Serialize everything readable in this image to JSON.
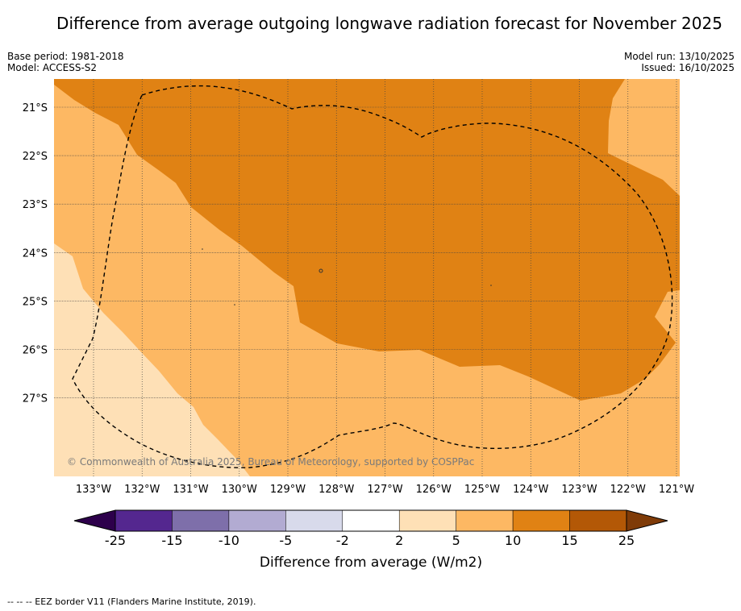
{
  "title": "Difference from average outgoing longwave radiation forecast for November 2025",
  "meta": {
    "base_period": "Base period: 1981-2018",
    "model": "Model: ACCESS-S2",
    "model_run": "Model run: 13/10/2025",
    "issued": "Issued: 16/10/2025"
  },
  "map": {
    "lat_labels": [
      "21°S",
      "22°S",
      "23°S",
      "24°S",
      "25°S",
      "26°S",
      "27°S"
    ],
    "lon_labels": [
      "133°W",
      "132°W",
      "131°W",
      "130°W",
      "129°W",
      "128°W",
      "127°W",
      "126°W",
      "125°W",
      "124°W",
      "123°W",
      "122°W",
      "121°W"
    ],
    "copyright": "© Commonwealth of Australia 2025, Bureau of Meteorology, supported by COSPPac"
  },
  "colorbar": {
    "ticks": [
      "-25",
      "-15",
      "-10",
      "-5",
      "-2",
      "2",
      "5",
      "10",
      "15",
      "25"
    ],
    "colors": [
      "#54278f",
      "#7e6faa",
      "#b2abd2",
      "#d8daeb",
      "#ffffff",
      "#fee0b6",
      "#fdb863",
      "#e08214",
      "#b35806"
    ],
    "under_color": "#2d004b",
    "over_color": "#7f3b08",
    "label": "Difference from average (W/m2)"
  },
  "legend": {
    "eez_text": "--  --  -- EEZ border V11 (Flanders Marine Institute, 2019)."
  }
}
